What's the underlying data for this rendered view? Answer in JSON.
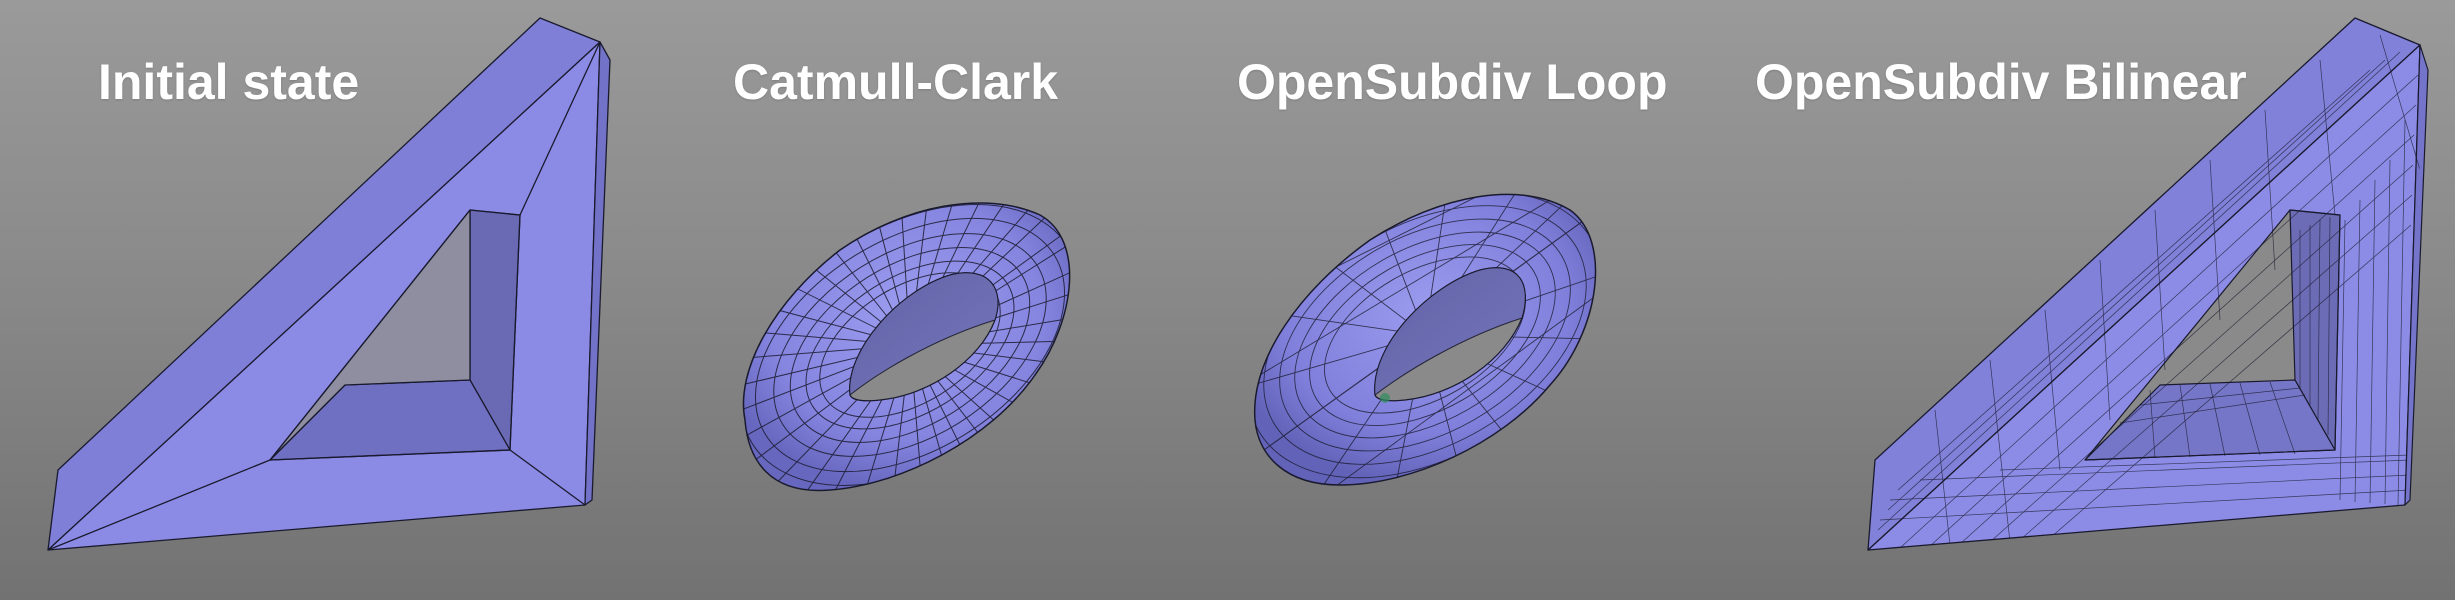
{
  "labels": {
    "initial": "Initial state",
    "catmull_clark": "Catmull-Clark",
    "opensubdiv_loop": "OpenSubdiv Loop",
    "opensubdiv_bilinear": "OpenSubdiv Bilinear"
  },
  "colors": {
    "background_top": "#9a9a9a",
    "background_bottom": "#727272",
    "mesh_light": "#8e8ee8",
    "mesh_mid": "#7d7dd6",
    "mesh_dark": "#6666b4",
    "wire": "#1a1a2e",
    "label_text": "#ffffff"
  }
}
